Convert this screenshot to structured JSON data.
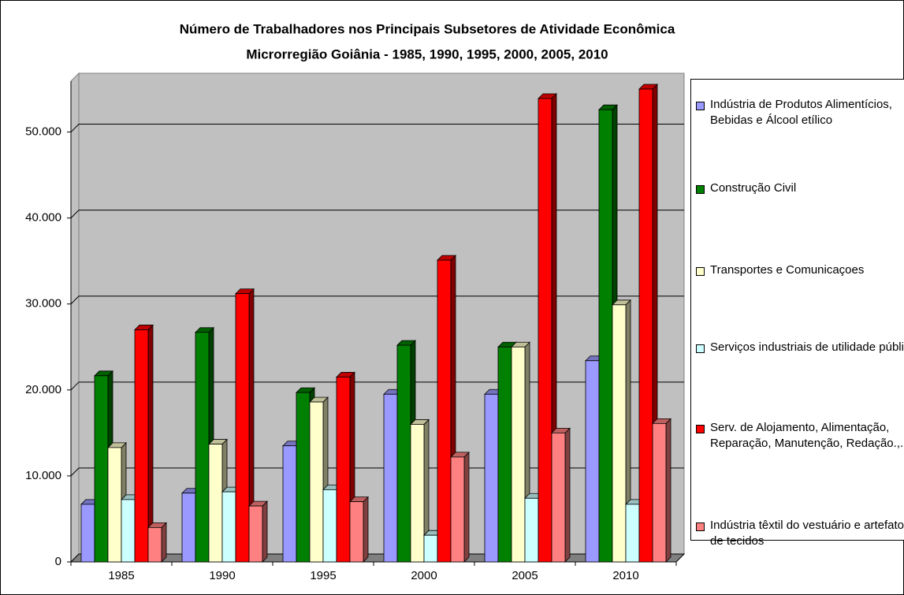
{
  "chart_data": {
    "type": "bar3d",
    "title": "Número de Trabalhadores nos Principais Subsetores de Atividade Econômica",
    "subtitle": "Microrregião Goiânia - 1985, 1990, 1995, 2000, 2005, 2010",
    "categories": [
      "1985",
      "1990",
      "1995",
      "2000",
      "2005",
      "2010"
    ],
    "series": [
      {
        "name": "Indústria de Produtos Alimentícios, Bebidas e Álcool etílico",
        "color": "#9999FF",
        "values": [
          6700,
          8000,
          13500,
          19500,
          19500,
          23400
        ]
      },
      {
        "name": "Construção Civil",
        "color": "#008000",
        "values": [
          21650,
          26700,
          19700,
          25200,
          25000,
          52600
        ]
      },
      {
        "name": "Transportes e Comunicaçoes",
        "color": "#FFFFCC",
        "values": [
          13300,
          13700,
          18600,
          16000,
          25000,
          29900
        ]
      },
      {
        "name": "Serviços industriais de utilidade pública",
        "color": "#CCFFFF",
        "values": [
          7250,
          8150,
          8400,
          3100,
          7400,
          6700
        ]
      },
      {
        "name": "Serv. de Alojamento, Alimentação, Reparação, Manutenção, Redação.,.",
        "color": "#FF0000",
        "values": [
          27000,
          31200,
          21500,
          35100,
          53900,
          55000
        ]
      },
      {
        "name": "Indústria têxtil do vestuário e artefatos de tecidos",
        "color": "#FF8080",
        "values": [
          4000,
          6500,
          7000,
          12200,
          15000,
          16100
        ]
      }
    ],
    "ylim": [
      0,
      55000
    ],
    "yticks": [
      0,
      {
        "value": 10000,
        "label": "10.000"
      },
      {
        "value": 20000,
        "label": "20.000"
      },
      {
        "value": 30000,
        "label": "30.000"
      },
      {
        "value": 40000,
        "label": "40.000"
      },
      {
        "value": 50000,
        "label": "50.000"
      }
    ],
    "grid": true
  }
}
